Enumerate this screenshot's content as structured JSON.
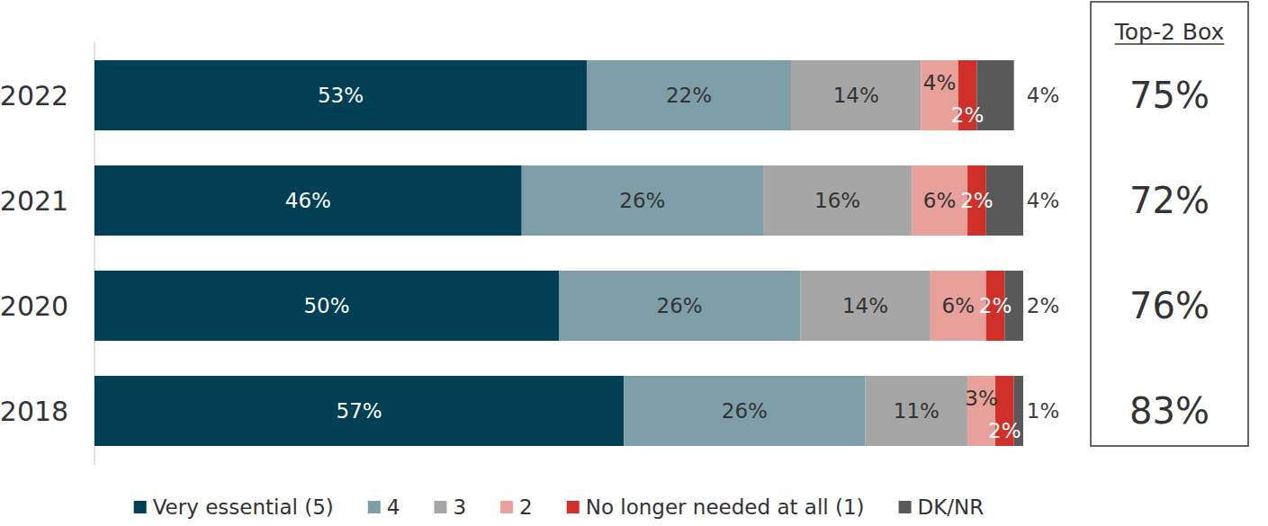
{
  "chart_data": {
    "type": "bar",
    "orientation": "horizontal",
    "stacked": true,
    "data_labels": true,
    "tick_labels": "y",
    "grid": false,
    "legend": "bottom",
    "categories": [
      "2022",
      "2021",
      "2020",
      "2018"
    ],
    "xlim": [
      0,
      100
    ],
    "series": [
      {
        "name": "Very essential (5)",
        "color": "#003f54",
        "values": [
          53,
          46,
          50,
          57
        ],
        "value_labels": [
          "53%",
          "46%",
          "50%",
          "57%"
        ]
      },
      {
        "name": "4",
        "color": "#7f9fa8",
        "values": [
          22,
          26,
          26,
          26
        ],
        "value_labels": [
          "22%",
          "26%",
          "26%",
          "26%"
        ]
      },
      {
        "name": "3",
        "color": "#a6a6a6",
        "values": [
          14,
          16,
          14,
          11
        ],
        "value_labels": [
          "14%",
          "16%",
          "14%",
          "11%"
        ]
      },
      {
        "name": "2",
        "color": "#e8a09a",
        "values": [
          4,
          6,
          6,
          3
        ],
        "value_labels": [
          "4%",
          "6%",
          "6%",
          "3%"
        ]
      },
      {
        "name": "No longer needed at all (1)",
        "color": "#d0302a",
        "values": [
          2,
          2,
          2,
          2
        ],
        "value_labels": [
          "2%",
          "2%",
          "2%",
          "2%"
        ]
      },
      {
        "name": "DK/NR",
        "color": "#595959",
        "values": [
          4,
          4,
          2,
          1
        ],
        "value_labels": [
          "4%",
          "4%",
          "2%",
          "1%"
        ]
      }
    ],
    "top2_box": {
      "label": "Top-2 Box",
      "values": [
        75,
        72,
        76,
        83
      ],
      "value_labels": [
        "75%",
        "72%",
        "76%",
        "83%"
      ]
    }
  }
}
